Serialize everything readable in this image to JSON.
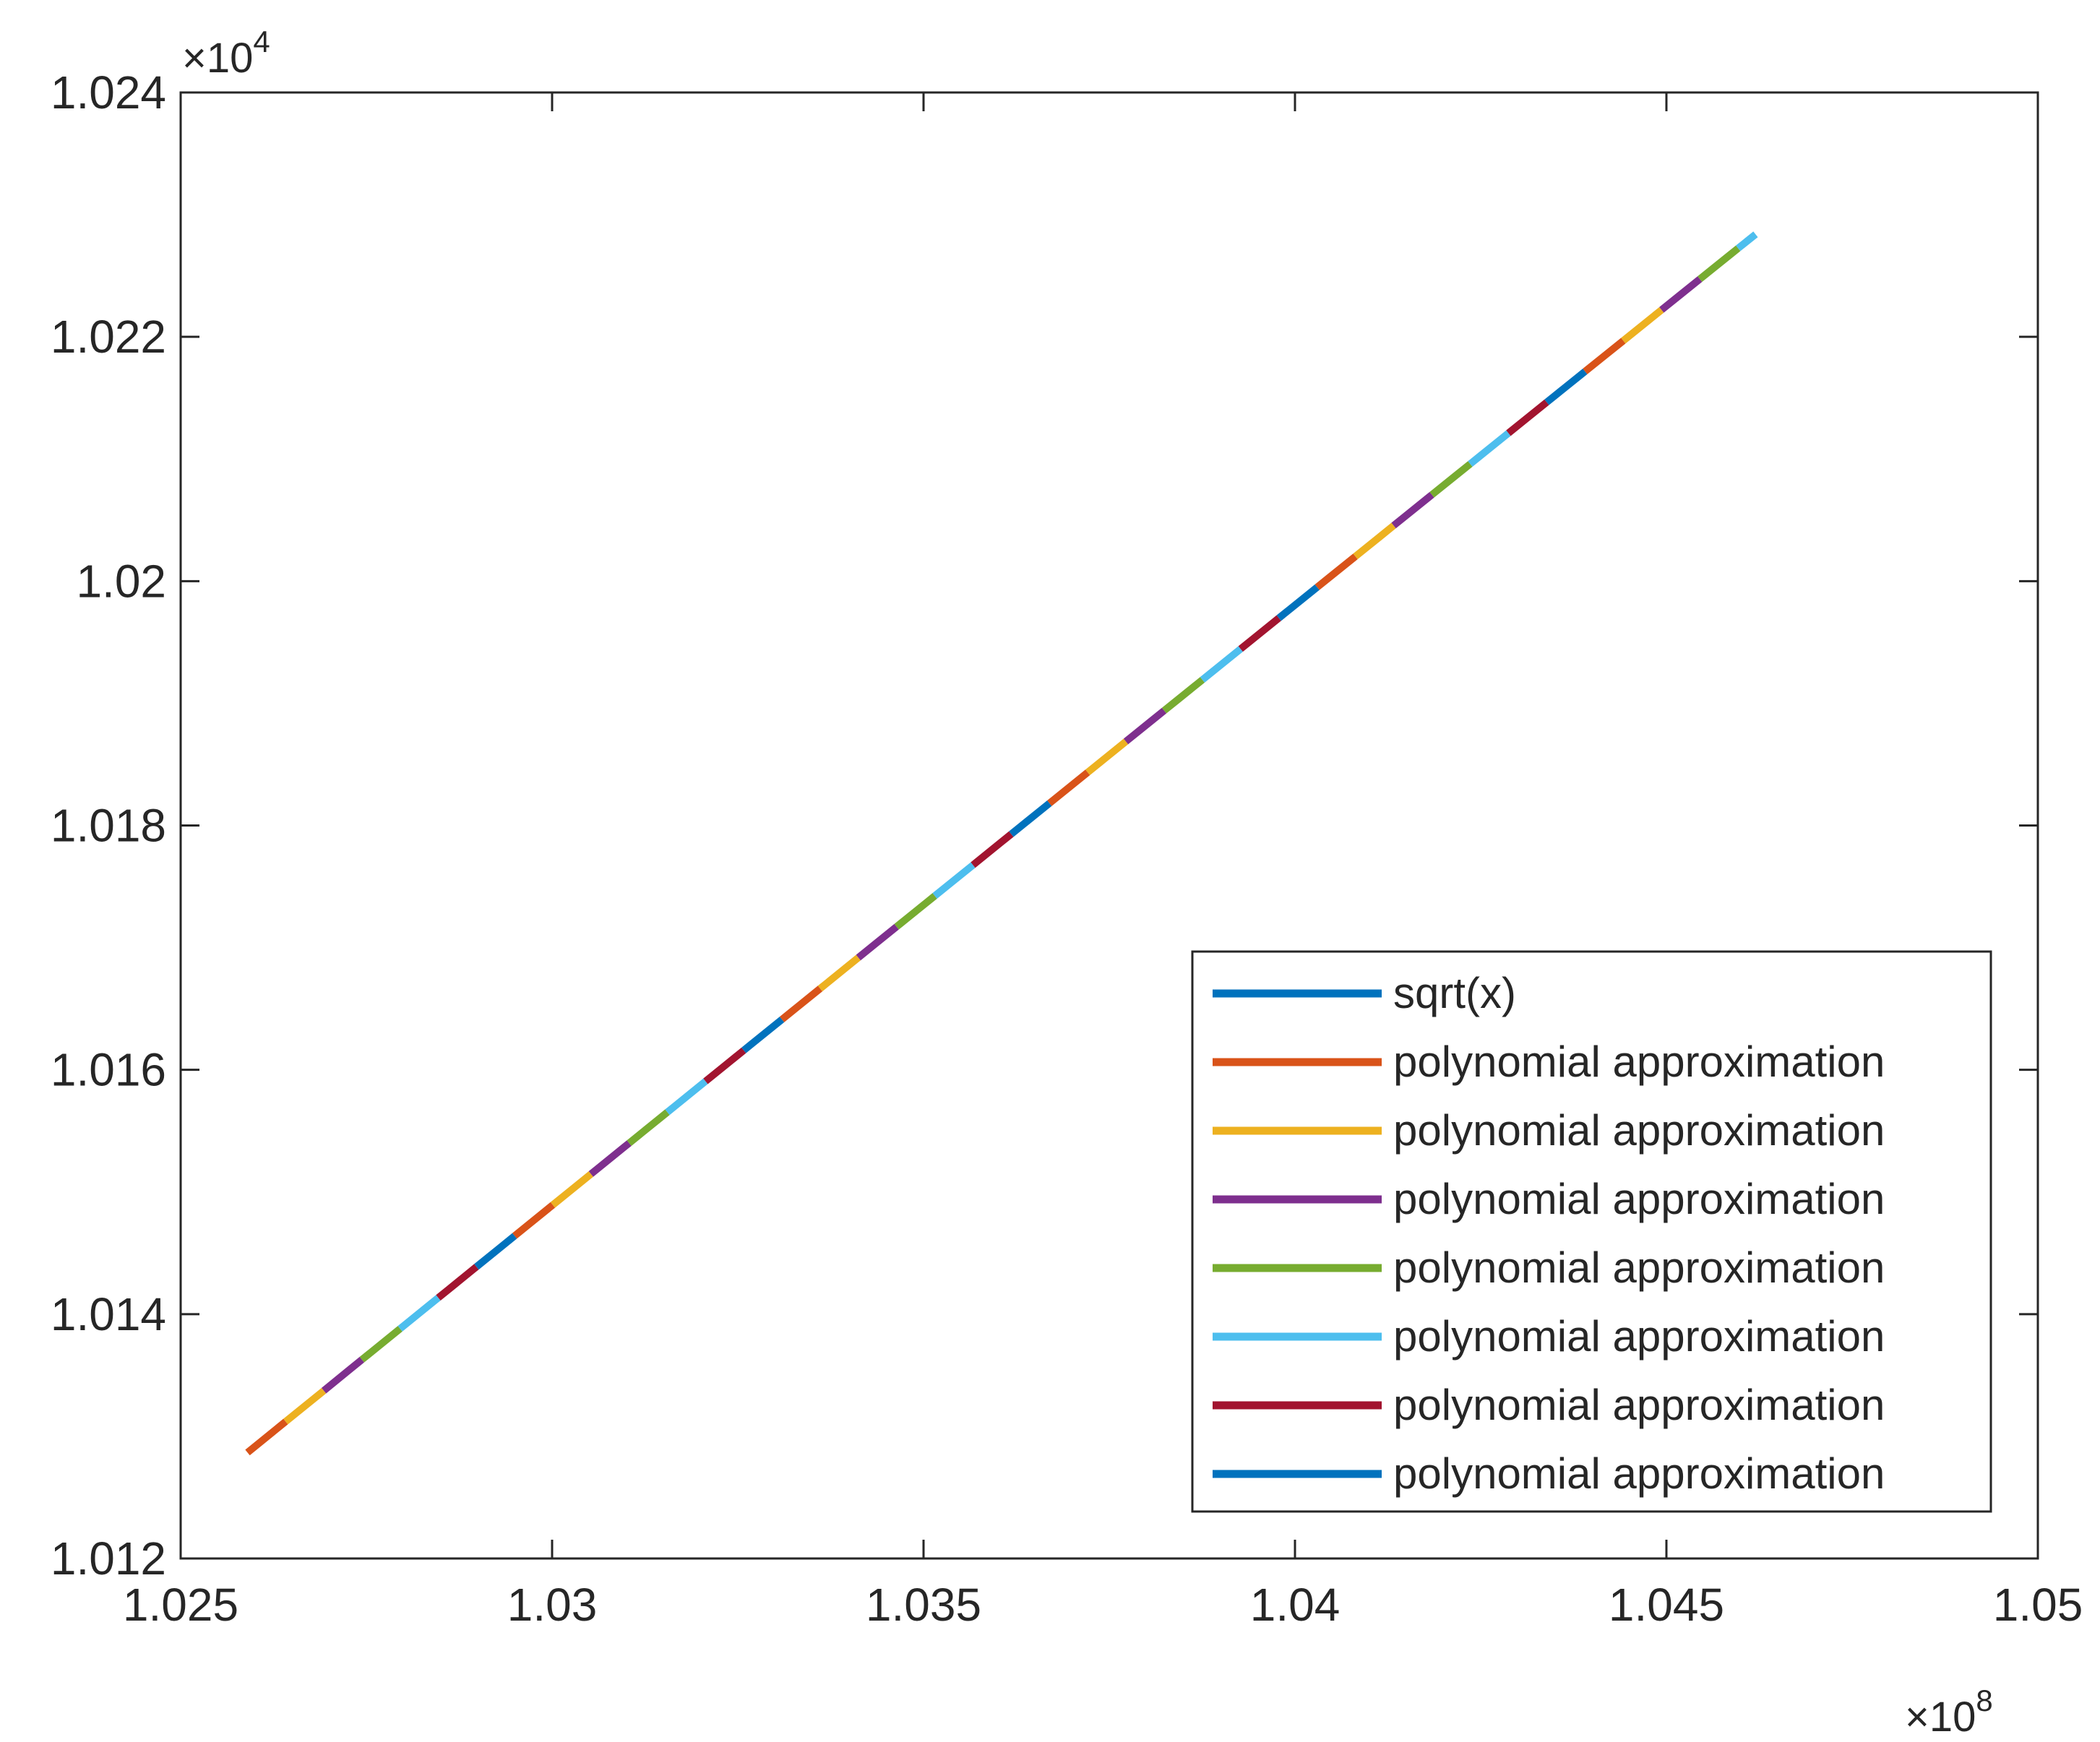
{
  "chart_data": {
    "type": "line",
    "title": "",
    "xlabel": "",
    "ylabel": "",
    "x_exponent_label": "×10",
    "x_exponent_power": "8",
    "y_exponent_label": "×10",
    "y_exponent_power": "4",
    "xlim": [
      1.025,
      1.05
    ],
    "ylim": [
      1.012,
      1.024
    ],
    "xticks": [
      "1.025",
      "1.03",
      "1.035",
      "1.04",
      "1.045",
      "1.05"
    ],
    "yticks": [
      "1.012",
      "1.014",
      "1.016",
      "1.018",
      "1.02",
      "1.022",
      "1.024"
    ],
    "grid": false,
    "legend_position": "bottom-right",
    "x_range_plotted": [
      1.0259,
      1.0462
    ],
    "series": [
      {
        "name": "sqrt(x)",
        "color": "#0072BD"
      },
      {
        "name": "polynomial approximation",
        "color": "#D95319"
      },
      {
        "name": "polynomial approximation",
        "color": "#EDB120"
      },
      {
        "name": "polynomial approximation",
        "color": "#7E2F8E"
      },
      {
        "name": "polynomial approximation",
        "color": "#77AC30"
      },
      {
        "name": "polynomial approximation",
        "color": "#4DBEEE"
      },
      {
        "name": "polynomial approximation",
        "color": "#A2142F"
      },
      {
        "name": "polynomial approximation",
        "color": "#0072BD"
      }
    ],
    "visible_dash_cycle": [
      "#D95319",
      "#EDB120",
      "#7E2F8E",
      "#77AC30",
      "#4DBEEE",
      "#A2142F",
      "#0072BD"
    ]
  }
}
